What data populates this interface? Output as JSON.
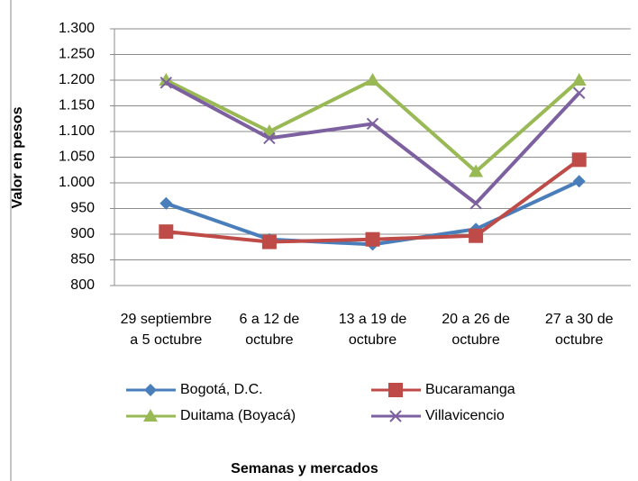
{
  "chart_data": {
    "type": "line",
    "y_label": "Valor en pesos",
    "x_label": "Semanas y mercados",
    "categories": [
      "29 septiembre a 5 octubre",
      "6 a 12 de octubre",
      "13 a 19 de octubre",
      "20 a 26 de octubre",
      "27 a 30 de octubre"
    ],
    "series": [
      {
        "name": "Bogotá, D.C.",
        "color": "#4a7ebb",
        "marker": "diamond",
        "values": [
          960,
          890,
          880,
          910,
          1003
        ]
      },
      {
        "name": "Bucaramanga",
        "color": "#be4b48",
        "marker": "square",
        "values": [
          905,
          885,
          890,
          897,
          1045
        ]
      },
      {
        "name": "Duitama (Boyacá)",
        "color": "#98b954",
        "marker": "triangle",
        "values": [
          1200,
          1100,
          1200,
          1022,
          1200
        ]
      },
      {
        "name": "Villavicencio",
        "color": "#7d60a0",
        "marker": "x",
        "values": [
          1195,
          1087,
          1115,
          960,
          1175
        ]
      }
    ],
    "ylim": [
      800,
      1300
    ],
    "yticks": [
      {
        "value": 800,
        "label": "800"
      },
      850,
      900,
      950,
      {
        "value": 1000,
        "label": "1.000"
      },
      {
        "value": 1050,
        "label": "1.050"
      },
      {
        "value": 1100,
        "label": "1.100"
      },
      {
        "value": 1150,
        "label": "1.150"
      },
      {
        "value": 1200,
        "label": "1.200"
      },
      {
        "value": 1250,
        "label": "1.250"
      },
      {
        "value": 1300,
        "label": "1.300"
      }
    ],
    "grid": true,
    "legend": "bottom"
  }
}
